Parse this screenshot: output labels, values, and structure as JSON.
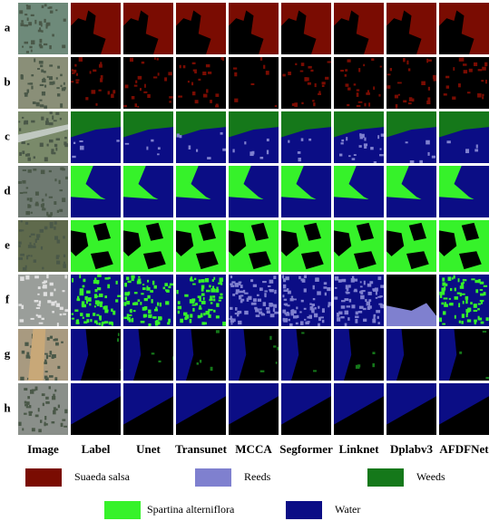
{
  "rows": [
    "a",
    "b",
    "c",
    "d",
    "e",
    "f",
    "g",
    "h"
  ],
  "columns": [
    "Image",
    "Label",
    "Unet",
    "Transunet",
    "MCCA",
    "Segformer",
    "Linknet",
    "Dplabv3",
    "AFDFNet"
  ],
  "legend": [
    {
      "label": "Suaeda salsa",
      "color": "#7a0c02"
    },
    {
      "label": "Reeds",
      "color": "#7f80cf"
    },
    {
      "label": "Weeds",
      "color": "#15781a"
    },
    {
      "label": "Spartina alterniflora",
      "color": "#36f22a"
    },
    {
      "label": "Water",
      "color": "#0b0d85"
    }
  ]
}
